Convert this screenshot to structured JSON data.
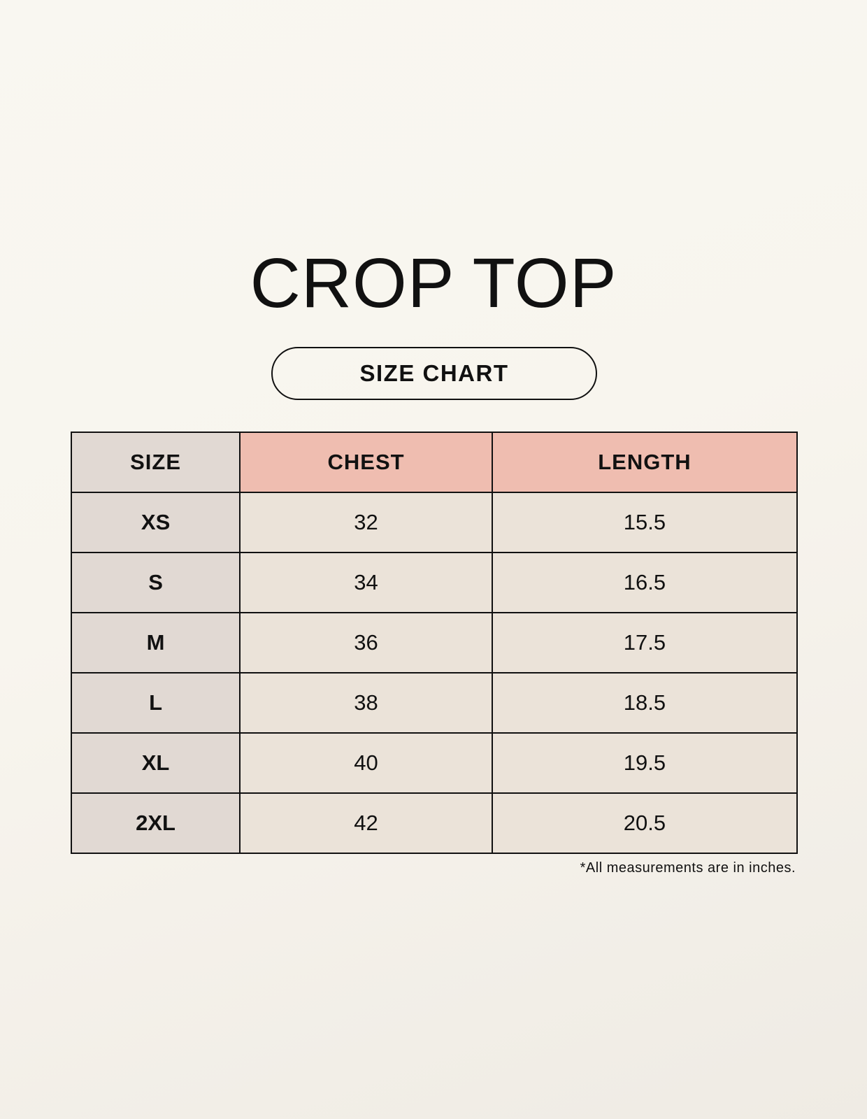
{
  "title": "CROP TOP",
  "subtitle": "SIZE CHART",
  "colors": {
    "header_size_bg": "#e1d9d3",
    "header_measure_bg": "#efbdb0",
    "cell_bg": "#ebe3d9"
  },
  "table": {
    "headers": [
      "SIZE",
      "CHEST",
      "LENGTH"
    ],
    "rows": [
      [
        "XS",
        "32",
        "15.5"
      ],
      [
        "S",
        "34",
        "16.5"
      ],
      [
        "M",
        "36",
        "17.5"
      ],
      [
        "L",
        "38",
        "18.5"
      ],
      [
        "XL",
        "40",
        "19.5"
      ],
      [
        "2XL",
        "42",
        "20.5"
      ]
    ]
  },
  "footnote": "*All measurements are in inches."
}
